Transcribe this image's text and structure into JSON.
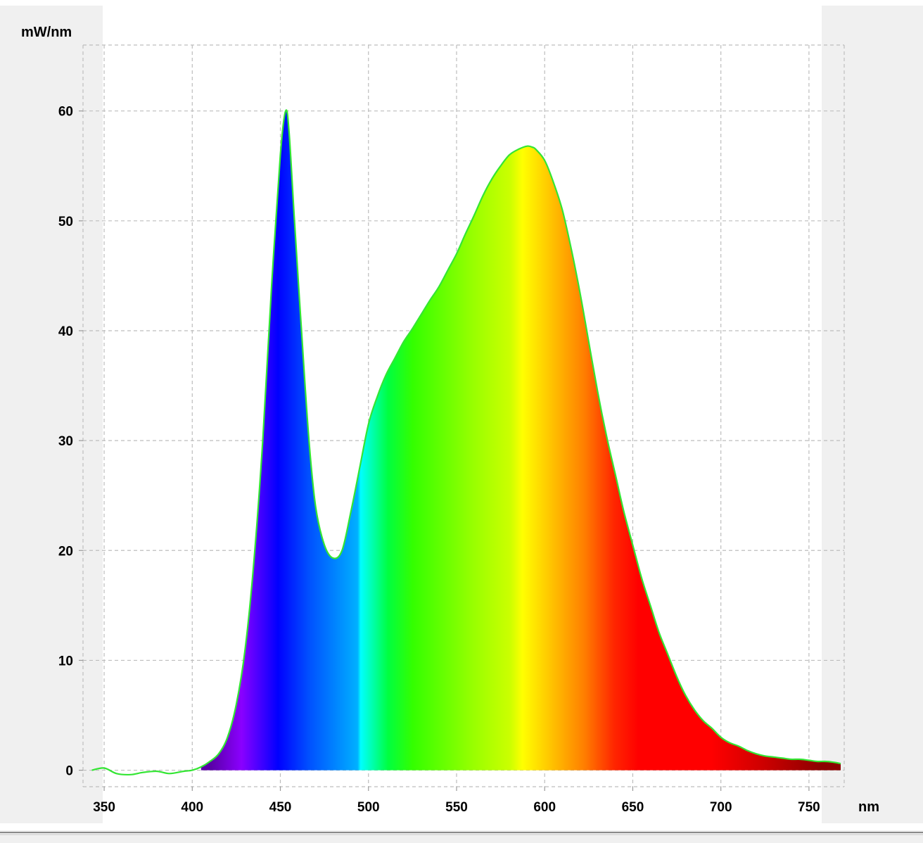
{
  "chart_data": {
    "type": "area",
    "title": "",
    "xlabel": "nm",
    "ylabel": "mW/nm",
    "xlim": [
      338,
      770
    ],
    "ylim": [
      -1.5,
      66
    ],
    "x_ticks": [
      350,
      400,
      450,
      500,
      550,
      600,
      650,
      700,
      750
    ],
    "y_ticks": [
      0,
      10,
      20,
      30,
      40,
      50,
      60
    ],
    "grid": true,
    "fill": "visible-spectrum gradient (violet to dark red) under the curve",
    "series": [
      {
        "line_color": "#33e633",
        "x": [
          343,
          350,
          357,
          365,
          372,
          380,
          387,
          395,
          400,
          405,
          410,
          415,
          420,
          425,
          430,
          435,
          440,
          445,
          450,
          453,
          455,
          458,
          462,
          466,
          470,
          475,
          480,
          485,
          490,
          495,
          500,
          505,
          510,
          515,
          520,
          525,
          530,
          535,
          540,
          545,
          550,
          555,
          560,
          565,
          570,
          575,
          580,
          585,
          590,
          593,
          595,
          600,
          605,
          610,
          615,
          620,
          625,
          630,
          635,
          640,
          645,
          650,
          655,
          660,
          665,
          670,
          675,
          680,
          685,
          690,
          695,
          700,
          705,
          710,
          715,
          720,
          725,
          730,
          735,
          740,
          745,
          750,
          755,
          760,
          765,
          768
        ],
        "y": [
          0.0,
          0.2,
          -0.3,
          -0.4,
          -0.2,
          -0.1,
          -0.3,
          -0.1,
          0.0,
          0.3,
          0.8,
          1.5,
          3.0,
          6.0,
          11.0,
          19.0,
          30.0,
          44.0,
          56.0,
          60.0,
          58.0,
          50.0,
          40.0,
          30.5,
          24.0,
          20.5,
          19.3,
          20.0,
          23.5,
          27.5,
          31.5,
          34.0,
          36.0,
          37.5,
          39.0,
          40.2,
          41.5,
          42.8,
          44.0,
          45.5,
          47.0,
          48.8,
          50.5,
          52.3,
          53.8,
          55.0,
          56.0,
          56.5,
          56.8,
          56.7,
          56.5,
          55.5,
          53.5,
          51.0,
          47.5,
          43.5,
          39.0,
          34.5,
          30.5,
          27.0,
          23.5,
          20.5,
          17.5,
          15.0,
          12.5,
          10.5,
          8.5,
          6.8,
          5.5,
          4.5,
          3.8,
          3.0,
          2.5,
          2.2,
          1.8,
          1.5,
          1.3,
          1.2,
          1.1,
          1.0,
          1.0,
          0.9,
          0.8,
          0.8,
          0.7,
          0.6
        ]
      }
    ]
  }
}
